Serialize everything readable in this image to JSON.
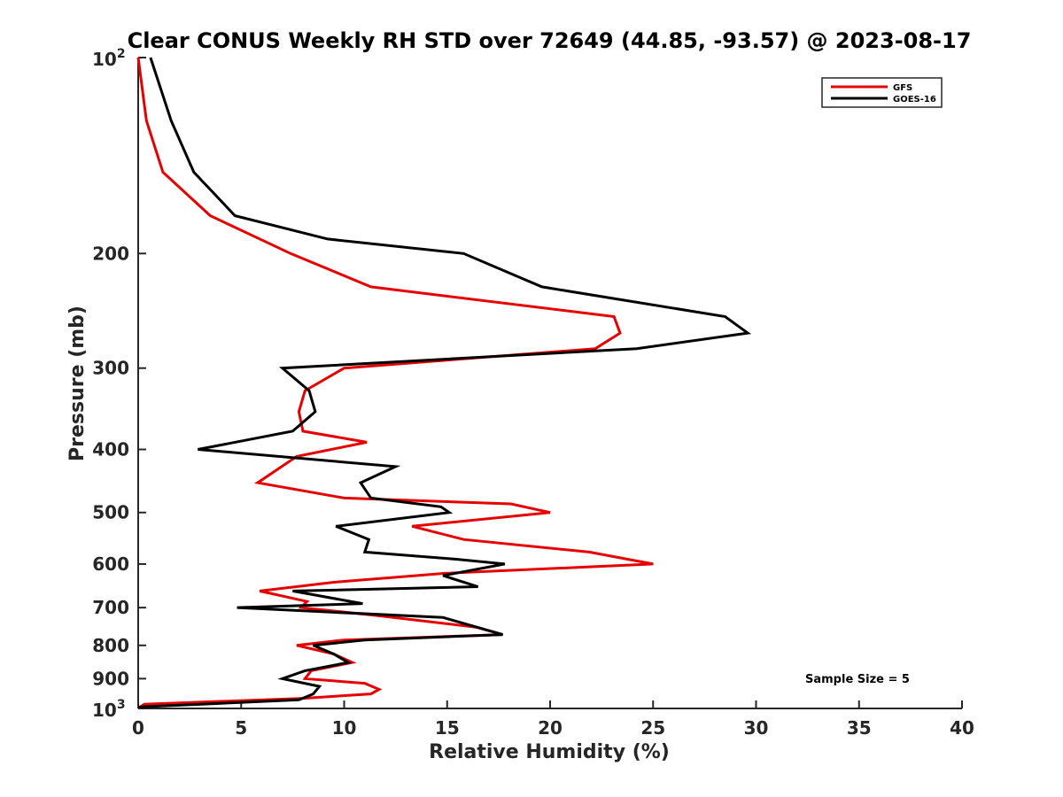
{
  "chart_data": {
    "type": "line",
    "title": "Clear CONUS Weekly RH STD over 72649 (44.85, -93.57) @ 2023-08-17",
    "xlabel": "Relative Humidity (%)",
    "ylabel": "Pressure (mb)",
    "xlim": [
      0,
      40
    ],
    "ylim": [
      100,
      1000
    ],
    "y_scale": "log",
    "y_reversed": true,
    "x_ticks": [
      0,
      5,
      10,
      15,
      20,
      25,
      30,
      35,
      40
    ],
    "y_ticks": [
      {
        "value": 100,
        "label": "10",
        "sup": "2"
      },
      {
        "value": 200,
        "label": "200"
      },
      {
        "value": 300,
        "label": "300"
      },
      {
        "value": 400,
        "label": "400"
      },
      {
        "value": 500,
        "label": "500"
      },
      {
        "value": 600,
        "label": "600"
      },
      {
        "value": 700,
        "label": "700"
      },
      {
        "value": 800,
        "label": "800"
      },
      {
        "value": 900,
        "label": "900"
      },
      {
        "value": 1000,
        "label": "10",
        "sup": "3"
      }
    ],
    "grid": false,
    "legend_position": "top-right",
    "annotation": "Sample Size = 5",
    "series": [
      {
        "name": "GFS",
        "color": "#e60000",
        "points": [
          [
            0,
            100
          ],
          [
            0.4,
            125
          ],
          [
            1.2,
            150
          ],
          [
            3.5,
            175
          ],
          [
            7.4,
            200
          ],
          [
            11.3,
            225
          ],
          [
            23.1,
            250
          ],
          [
            23.4,
            265
          ],
          [
            22.2,
            280
          ],
          [
            10.0,
            300
          ],
          [
            8.1,
            325
          ],
          [
            7.8,
            350
          ],
          [
            8.0,
            375
          ],
          [
            11.1,
            390
          ],
          [
            7.7,
            410
          ],
          [
            5.8,
            450
          ],
          [
            10.0,
            475
          ],
          [
            18.1,
            485
          ],
          [
            20.0,
            500
          ],
          [
            13.3,
            525
          ],
          [
            15.8,
            550
          ],
          [
            21.9,
            575
          ],
          [
            25.0,
            600
          ],
          [
            14.9,
            620
          ],
          [
            9.5,
            640
          ],
          [
            5.9,
            660
          ],
          [
            8.2,
            685
          ],
          [
            7.9,
            700
          ],
          [
            11.6,
            720
          ],
          [
            16.4,
            750
          ],
          [
            17.7,
            770
          ],
          [
            10.0,
            785
          ],
          [
            7.7,
            800
          ],
          [
            9.5,
            825
          ],
          [
            10.4,
            850
          ],
          [
            8.4,
            875
          ],
          [
            8.1,
            900
          ],
          [
            11.0,
            915
          ],
          [
            11.7,
            935
          ],
          [
            11.3,
            950
          ],
          [
            8.0,
            965
          ],
          [
            0.3,
            985
          ],
          [
            0,
            1000
          ]
        ]
      },
      {
        "name": "GOES-16",
        "color": "#000000",
        "points": [
          [
            0.6,
            100
          ],
          [
            1.6,
            125
          ],
          [
            2.7,
            150
          ],
          [
            4.7,
            175
          ],
          [
            9.2,
            190
          ],
          [
            15.8,
            200
          ],
          [
            19.6,
            225
          ],
          [
            28.5,
            250
          ],
          [
            29.6,
            265
          ],
          [
            24.2,
            280
          ],
          [
            7.0,
            300
          ],
          [
            8.3,
            325
          ],
          [
            8.6,
            350
          ],
          [
            7.5,
            375
          ],
          [
            2.9,
            400
          ],
          [
            12.5,
            425
          ],
          [
            10.8,
            450
          ],
          [
            11.3,
            475
          ],
          [
            14.7,
            490
          ],
          [
            15.1,
            500
          ],
          [
            9.6,
            525
          ],
          [
            11.2,
            550
          ],
          [
            11.0,
            575
          ],
          [
            15.5,
            590
          ],
          [
            17.8,
            600
          ],
          [
            14.8,
            625
          ],
          [
            16.5,
            650
          ],
          [
            7.5,
            660
          ],
          [
            10.9,
            690
          ],
          [
            4.8,
            700
          ],
          [
            14.8,
            725
          ],
          [
            17.7,
            770
          ],
          [
            11.0,
            785
          ],
          [
            8.5,
            800
          ],
          [
            9.5,
            825
          ],
          [
            10.2,
            850
          ],
          [
            8.1,
            875
          ],
          [
            7.0,
            900
          ],
          [
            8.8,
            925
          ],
          [
            8.5,
            950
          ],
          [
            7.8,
            970
          ],
          [
            0,
            995
          ]
        ]
      }
    ]
  }
}
